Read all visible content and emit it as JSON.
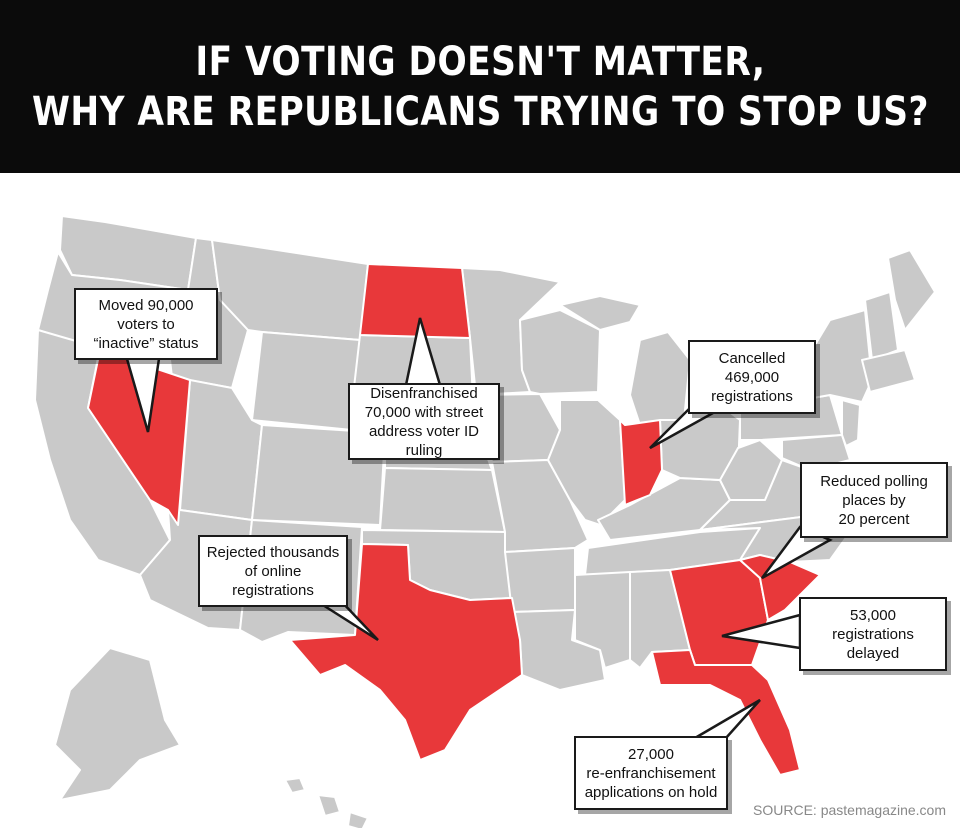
{
  "header": {
    "line1": "IF VOTING DOESN'T MATTER,",
    "line2": "WHY ARE REPUBLICANS TRYING TO STOP US?"
  },
  "colors": {
    "banner_bg": "#0b0b0b",
    "state_default": "#c9c9c9",
    "state_highlight": "#e8383a",
    "state_border": "#ffffff"
  },
  "highlighted_states": [
    "Nevada",
    "North Dakota",
    "Indiana",
    "Texas",
    "Georgia",
    "South Carolina",
    "Florida"
  ],
  "callouts": {
    "nevada": "Moved 90,000\nvoters to\n“inactive” status",
    "north_dakota": "Disenfranchised\n70,000 with street\naddress voter ID ruling",
    "indiana": "Cancelled\n469,000\nregistrations",
    "south_carolina": "Reduced polling\nplaces by\n20 percent",
    "texas": "Rejected thousands\nof online\nregistrations",
    "georgia": "53,000\nregistrations\ndelayed",
    "florida": "27,000\nre-enfranchisement\napplications on hold"
  },
  "source": "SOURCE: pastemagazine.com"
}
